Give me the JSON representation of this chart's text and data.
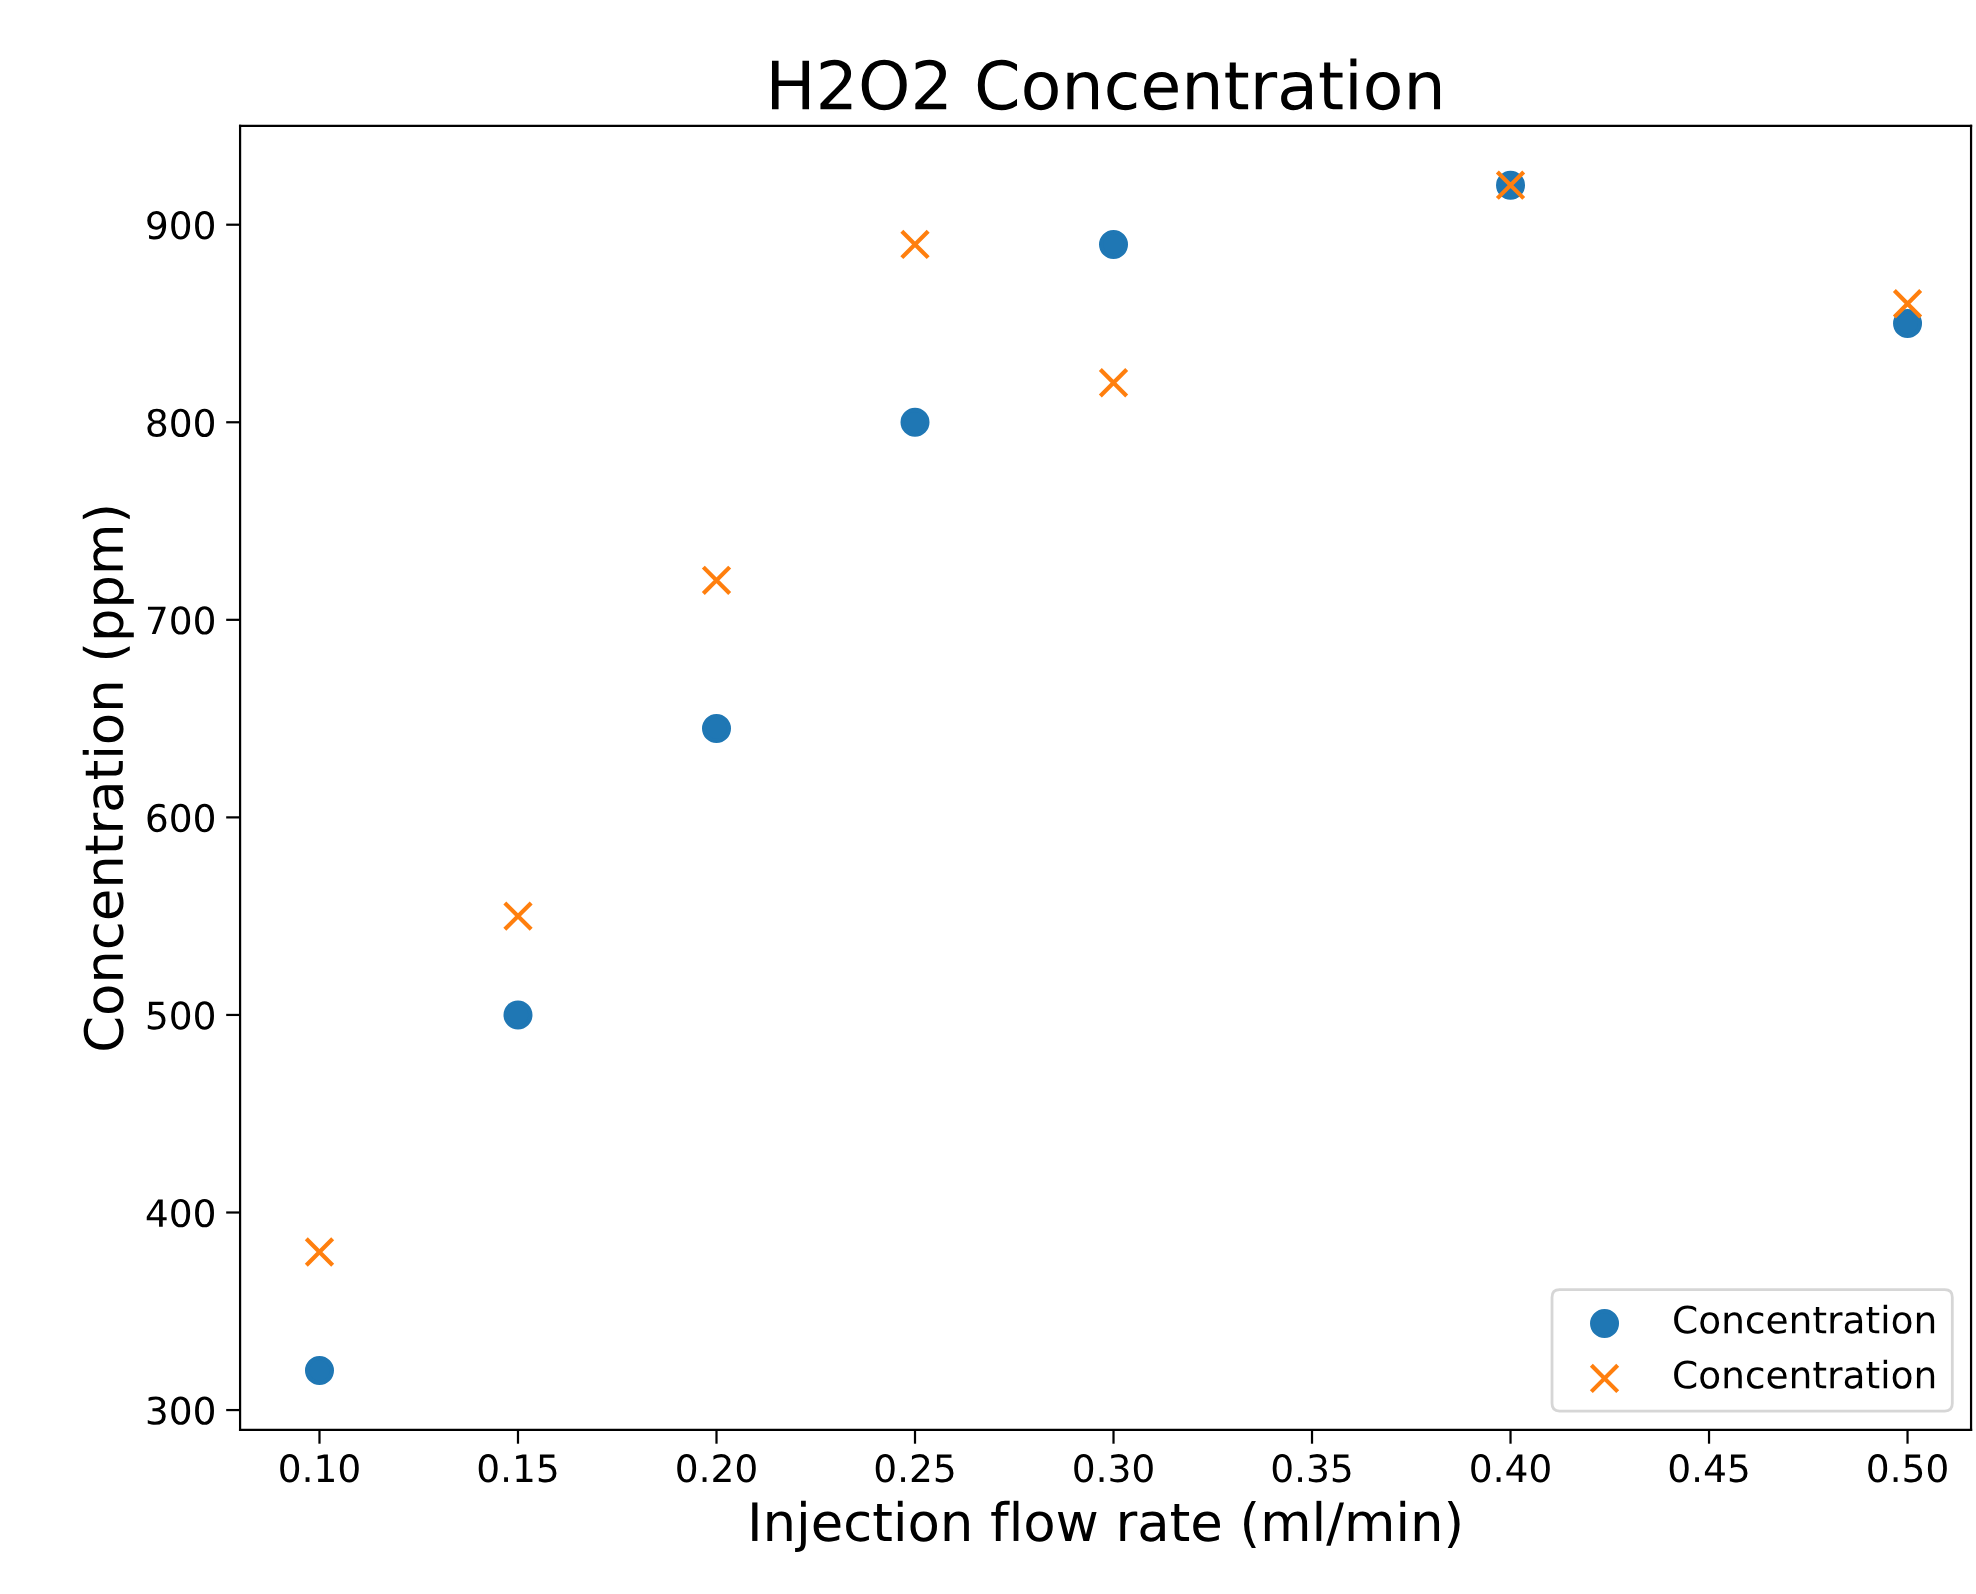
{
  "chart_data": {
    "type": "scatter",
    "title": "H2O2 Concentration",
    "xlabel": "Injection flow rate (ml/min)",
    "ylabel": "Concentration (ppm)",
    "x": [
      0.1,
      0.15,
      0.2,
      0.25,
      0.3,
      0.4,
      0.5
    ],
    "series": [
      {
        "name": "Concentration",
        "color": "#1f77b4",
        "marker": "circle",
        "values": [
          320,
          500,
          645,
          800,
          890,
          920,
          850
        ]
      },
      {
        "name": "Concentration",
        "color": "#ff7f0e",
        "marker": "cross",
        "values": [
          380,
          550,
          720,
          890,
          820,
          920,
          860
        ]
      }
    ],
    "xlim": [
      0.08,
      0.516
    ],
    "xticks": [
      {
        "value": 0.1,
        "label": "0.10"
      },
      {
        "value": 0.15,
        "label": "0.15"
      },
      {
        "value": 0.2,
        "label": "0.20"
      },
      {
        "value": 0.25,
        "label": "0.25"
      },
      {
        "value": 0.3,
        "label": "0.30"
      },
      {
        "value": 0.35,
        "label": "0.35"
      },
      {
        "value": 0.4,
        "label": "0.40"
      },
      {
        "value": 0.45,
        "label": "0.45"
      },
      {
        "value": 0.5,
        "label": "0.50"
      }
    ],
    "ylim": [
      290,
      950
    ],
    "yticks": [
      300,
      400,
      500,
      600,
      700,
      800,
      900
    ],
    "grid": false,
    "legend": "bottom right"
  }
}
